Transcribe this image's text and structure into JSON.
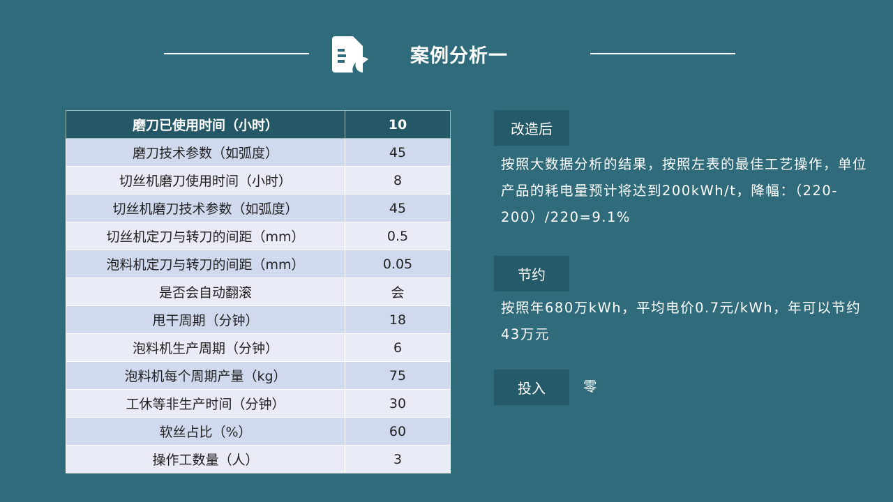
{
  "header": {
    "title": "案例分析一",
    "icon": "document-chart-icon"
  },
  "table": {
    "header": [
      "磨刀已使用时间（小时）",
      "10"
    ],
    "rows": [
      [
        "磨刀技术参数（如弧度）",
        "45"
      ],
      [
        "切丝机磨刀使用时间（小时）",
        "8"
      ],
      [
        "切丝机磨刀技术参数（如弧度）",
        "45"
      ],
      [
        "切丝机定刀与转刀的间距（mm）",
        "0.5"
      ],
      [
        "泡料机定刀与转刀的间距（mm）",
        "0.05"
      ],
      [
        "是否会自动翻滚",
        "会"
      ],
      [
        "甩干周期（分钟）",
        "18"
      ],
      [
        "泡料机生产周期（分钟）",
        "6"
      ],
      [
        "泡料机每个周期产量（kg）",
        "75"
      ],
      [
        "工休等非生产时间（分钟）",
        "30"
      ],
      [
        "软丝占比（%）",
        "60"
      ],
      [
        "操作工数量（人）",
        "3"
      ]
    ]
  },
  "sections": [
    {
      "label": "改造后",
      "text": "按照大数据分析的结果，按照左表的最佳工艺操作，单位产品的耗电量预计将达到200kWh/t，降幅：（220-200）/220=9.1%"
    },
    {
      "label": "节约",
      "text": "按照年680万kWh，平均电价0.7元/kWh，年可以节约43万元"
    },
    {
      "label": "投入",
      "text": "零"
    }
  ]
}
